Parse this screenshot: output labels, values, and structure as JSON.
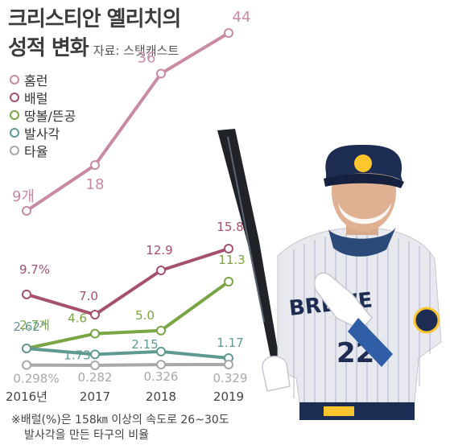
{
  "title": {
    "line1": "크리스티안 옐리치의",
    "line2": "성적 변화",
    "source": "자료: 스탯캐스트"
  },
  "colors": {
    "hr": "#c98aa3",
    "barrel": "#a5516e",
    "flyball": "#7aa545",
    "launch": "#5f9a92",
    "avg": "#a8a8a8"
  },
  "chart_data": {
    "type": "line",
    "x": [
      "2016년",
      "2017",
      "2018",
      "2019"
    ],
    "series": [
      {
        "key": "hr",
        "name": "홈런",
        "values": [
          9,
          18,
          36,
          44
        ],
        "labels": [
          "9개",
          "18",
          "36",
          "44"
        ]
      },
      {
        "key": "barrel",
        "name": "배럴",
        "values": [
          9.7,
          7.0,
          12.9,
          15.8
        ],
        "labels": [
          "9.7%",
          "7.0",
          "12.9",
          "15.8"
        ]
      },
      {
        "key": "flyball",
        "name": "땅볼/뜬공",
        "values": [
          2.7,
          4.6,
          5.0,
          11.3
        ],
        "labels": [
          "2.7개",
          "4.6",
          "5.0",
          "11.3"
        ]
      },
      {
        "key": "launch",
        "name": "발사각",
        "values": [
          2.62,
          1.73,
          2.15,
          1.17
        ],
        "labels": [
          "2.62°",
          "1.73",
          "2.15",
          "1.17"
        ]
      },
      {
        "key": "avg",
        "name": "타율",
        "values": [
          0.298,
          0.282,
          0.326,
          0.329
        ],
        "labels": [
          "0.298%",
          "0.282",
          "0.326",
          "0.329"
        ]
      }
    ]
  },
  "footnote": {
    "line1": "※배럴(%)은 158㎞ 이상의 속도로 26~30도",
    "line2": "발사각을 만든 타구의 비율"
  }
}
